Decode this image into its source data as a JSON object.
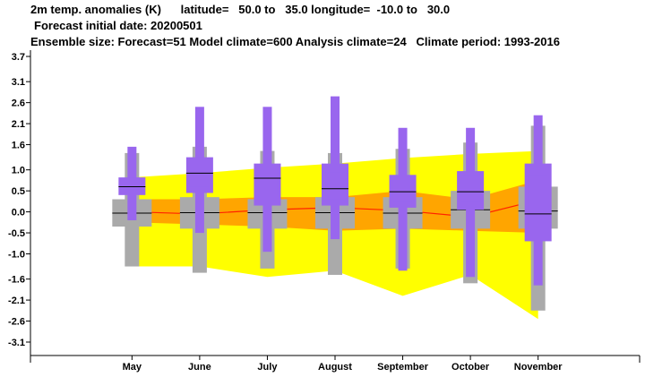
{
  "header": {
    "line1": "2m temp. anomalies (K)      latitude=   50.0 to   35.0 longitude=  -10.0 to   30.0",
    "line2": "Forecast initial date: 20200501",
    "line3": "Ensemble size: Forecast=51 Model climate=600 Analysis climate=24   Climate period: 1993-2016"
  },
  "chart_data": {
    "type": "box-plume",
    "xlabel": "",
    "ylabel": "",
    "categories": [
      "May",
      "June",
      "July",
      "August",
      "September",
      "October",
      "November"
    ],
    "y_ticks": [
      3.7,
      3.1,
      2.6,
      2.1,
      1.6,
      1.0,
      0.5,
      0.0,
      -0.5,
      -1.0,
      -1.6,
      -2.1,
      -2.6,
      -3.1
    ],
    "ylim": [
      -3.42,
      3.85
    ],
    "grid": false,
    "colors": {
      "forecast": "#9966ee",
      "model_climate": "#aaaaaa",
      "outer_band": "#ffff00",
      "inner_band": "#ffa500",
      "median_line": "#ff2200"
    },
    "model_climate_bands": {
      "outer_lower": [
        -1.3,
        -1.3,
        -1.55,
        -1.4,
        -2.0,
        -1.5,
        -2.55
      ],
      "outer_upper": [
        0.82,
        0.92,
        1.05,
        1.15,
        1.28,
        1.38,
        1.45
      ],
      "inner_lower": [
        -0.25,
        -0.3,
        -0.35,
        -0.45,
        -0.4,
        -0.45,
        -0.5
      ],
      "inner_upper": [
        0.3,
        0.3,
        0.35,
        0.35,
        0.5,
        0.3,
        0.75
      ],
      "median": [
        0.0,
        -0.05,
        0.05,
        0.1,
        0.03,
        -0.12,
        0.28
      ]
    },
    "model_climate_boxes": [
      {
        "min": -1.3,
        "p10": -0.35,
        "p25": -0.2,
        "median": -0.03,
        "p75": 0.15,
        "p90": 0.3,
        "max": 1.4
      },
      {
        "min": -1.45,
        "p10": -0.4,
        "p25": -0.2,
        "median": -0.02,
        "p75": 0.15,
        "p90": 0.35,
        "max": 1.55
      },
      {
        "min": -1.35,
        "p10": -0.4,
        "p25": -0.2,
        "median": -0.02,
        "p75": 0.15,
        "p90": 0.3,
        "max": 1.45
      },
      {
        "min": -1.5,
        "p10": -0.4,
        "p25": -0.2,
        "median": -0.02,
        "p75": 0.15,
        "p90": 0.35,
        "max": 1.4
      },
      {
        "min": -1.35,
        "p10": -0.4,
        "p25": -0.2,
        "median": -0.03,
        "p75": 0.15,
        "p90": 0.35,
        "max": 1.5
      },
      {
        "min": -1.7,
        "p10": -0.4,
        "p25": -0.2,
        "median": 0.05,
        "p75": 0.25,
        "p90": 0.5,
        "max": 1.65
      },
      {
        "min": -2.35,
        "p10": -0.4,
        "p25": -0.15,
        "median": 0.02,
        "p75": 0.3,
        "p90": 0.6,
        "max": 2.05
      }
    ],
    "forecast_boxes": [
      {
        "min": -0.2,
        "p10": 0.4,
        "p25": 0.45,
        "median": 0.6,
        "p75": 0.75,
        "p90": 0.82,
        "max": 1.55
      },
      {
        "min": -0.5,
        "p10": 0.45,
        "p25": 0.6,
        "median": 0.92,
        "p75": 1.15,
        "p90": 1.3,
        "max": 2.5
      },
      {
        "min": -0.95,
        "p10": 0.15,
        "p25": 0.4,
        "median": 0.8,
        "p75": 1.05,
        "p90": 1.15,
        "max": 2.5
      },
      {
        "min": -0.65,
        "p10": 0.15,
        "p25": 0.3,
        "median": 0.55,
        "p75": 0.95,
        "p90": 1.15,
        "max": 2.75
      },
      {
        "min": -1.4,
        "p10": 0.1,
        "p25": 0.25,
        "median": 0.48,
        "p75": 0.75,
        "p90": 0.88,
        "max": 2.0
      },
      {
        "min": -1.55,
        "p10": 0.05,
        "p25": 0.25,
        "median": 0.48,
        "p75": 0.85,
        "p90": 0.97,
        "max": 2.0
      },
      {
        "min": -1.75,
        "p10": -0.7,
        "p25": -0.4,
        "median": -0.05,
        "p75": 0.85,
        "p90": 1.15,
        "max": 2.3
      }
    ]
  }
}
